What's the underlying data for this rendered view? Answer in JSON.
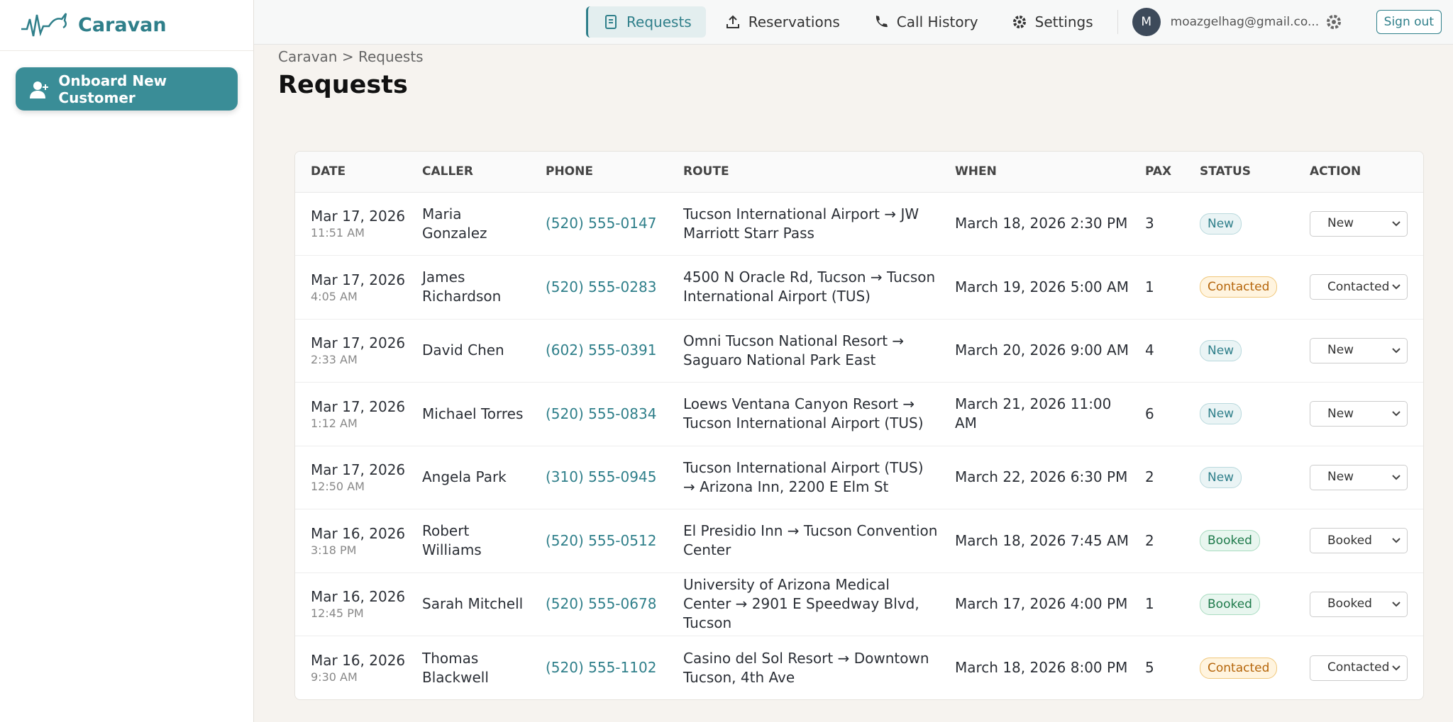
{
  "brand": "Caravan",
  "sidebar": {
    "button": "Onboard New Customer"
  },
  "nav": {
    "items": [
      "Requests",
      "Reservations",
      "Call History",
      "Settings"
    ],
    "avatar": "M",
    "email": "moazgelhag@gmail.co...",
    "sign_out": "Sign out"
  },
  "breadcrumb": "Caravan > Requests",
  "page_title": "Requests",
  "table": {
    "headers": [
      "DATE",
      "CALLER",
      "PHONE",
      "ROUTE",
      "WHEN",
      "PAX",
      "STATUS",
      "ACTION"
    ],
    "rows": [
      {
        "date": "Mar 17, 2026",
        "time": "11:51 AM",
        "caller": "Maria Gonzalez",
        "phone": "(520) 555-0147",
        "route": "Tucson International Airport → JW Marriott Starr Pass",
        "when": "March 18, 2026 2:30 PM",
        "pax": 3,
        "status": "New",
        "action": "New"
      },
      {
        "date": "Mar 17, 2026",
        "time": "4:05 AM",
        "caller": "James Richardson",
        "phone": "(520) 555-0283",
        "route": "4500 N Oracle Rd, Tucson → Tucson International Airport (TUS)",
        "when": "March 19, 2026 5:00 AM",
        "pax": 1,
        "status": "Contacted",
        "action": "Contacted"
      },
      {
        "date": "Mar 17, 2026",
        "time": "2:33 AM",
        "caller": "David Chen",
        "phone": "(602) 555-0391",
        "route": "Omni Tucson National Resort → Saguaro National Park East",
        "when": "March 20, 2026 9:00 AM",
        "pax": 4,
        "status": "New",
        "action": "New"
      },
      {
        "date": "Mar 17, 2026",
        "time": "1:12 AM",
        "caller": "Michael Torres",
        "phone": "(520) 555-0834",
        "route": "Loews Ventana Canyon Resort → Tucson International Airport (TUS)",
        "when": "March 21, 2026 11:00 AM",
        "pax": 6,
        "status": "New",
        "action": "New"
      },
      {
        "date": "Mar 17, 2026",
        "time": "12:50 AM",
        "caller": "Angela Park",
        "phone": "(310) 555-0945",
        "route": "Tucson International Airport (TUS) → Arizona Inn, 2200 E Elm St",
        "when": "March 22, 2026 6:30 PM",
        "pax": 2,
        "status": "New",
        "action": "New"
      },
      {
        "date": "Mar 16, 2026",
        "time": "3:18 PM",
        "caller": "Robert Williams",
        "phone": "(520) 555-0512",
        "route": "El Presidio Inn → Tucson Convention Center",
        "when": "March 18, 2026 7:45 AM",
        "pax": 2,
        "status": "Booked",
        "action": "Booked"
      },
      {
        "date": "Mar 16, 2026",
        "time": "12:45 PM",
        "caller": "Sarah Mitchell",
        "phone": "(520) 555-0678",
        "route": "University of Arizona Medical Center → 2901 E Speedway Blvd, Tucson",
        "when": "March 17, 2026 4:00 PM",
        "pax": 1,
        "status": "Booked",
        "action": "Booked"
      },
      {
        "date": "Mar 16, 2026",
        "time": "9:30 AM",
        "caller": "Thomas Blackwell",
        "phone": "(520) 555-1102",
        "route": "Casino del Sol Resort → Downtown Tucson, 4th Ave",
        "when": "March 18, 2026 8:00 PM",
        "pax": 5,
        "status": "Contacted",
        "action": "Contacted"
      }
    ]
  }
}
